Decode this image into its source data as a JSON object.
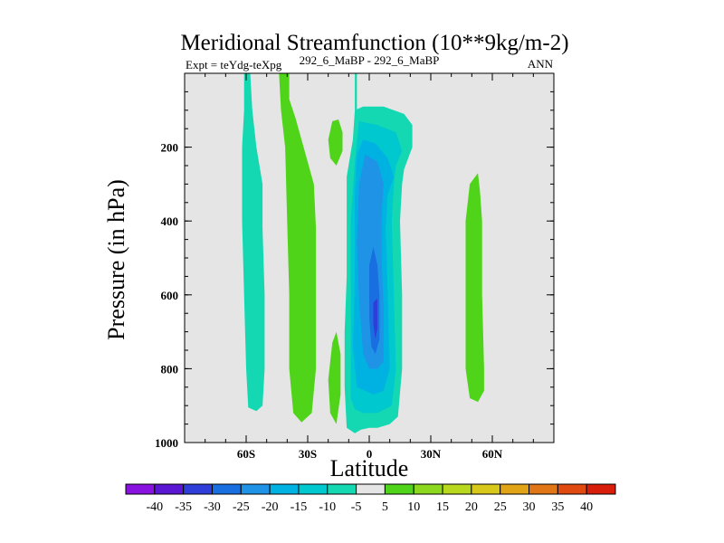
{
  "chart_data": {
    "type": "contour",
    "title": "Meridional Streamfunction (10**9kg/m-2)",
    "left_subtitle": "Expt = teYdg-teXpg",
    "center_subtitle": "292_6_MaBP - 292_6_MaBP",
    "right_subtitle": "ANN",
    "xlabel": "Latitude",
    "ylabel": "Pressure (in hPa)",
    "xlim": [
      -90,
      90
    ],
    "ylim": [
      1000,
      0
    ],
    "xticks": [
      {
        "value": -60,
        "label": "60S"
      },
      {
        "value": -30,
        "label": "30S"
      },
      {
        "value": 0,
        "label": "0"
      },
      {
        "value": 30,
        "label": "30N"
      },
      {
        "value": 60,
        "label": "60N"
      }
    ],
    "yticks": [
      {
        "value": 200,
        "label": "200"
      },
      {
        "value": 400,
        "label": "400"
      },
      {
        "value": 600,
        "label": "600"
      },
      {
        "value": 800,
        "label": "800"
      },
      {
        "value": 1000,
        "label": "1000"
      }
    ],
    "background_fill": "#e5e5e5",
    "colorbar": {
      "labels": [
        "-40",
        "-35",
        "-30",
        "-25",
        "-20",
        "-15",
        "-10",
        "-5",
        "5",
        "10",
        "15",
        "20",
        "25",
        "30",
        "35",
        "40"
      ],
      "colors": [
        "#8a12e0",
        "#5a16d2",
        "#2f3ed8",
        "#1a6fe0",
        "#1f93e6",
        "#00b2e2",
        "#00c8cf",
        "#14d8b2",
        "#e5e5e5",
        "#4fd41a",
        "#8cd81e",
        "#b8d81e",
        "#d8c81a",
        "#e0a416",
        "#e07616",
        "#e04a10",
        "#d81e0a"
      ]
    },
    "contour_regions": [
      {
        "name": "sh-polar-cell",
        "level": "-5",
        "color": "#14d8b2",
        "points": [
          [
            -61,
            0
          ],
          [
            -58,
            0
          ],
          [
            -57,
            100
          ],
          [
            -55,
            200
          ],
          [
            -52,
            300
          ],
          [
            -52,
            420
          ],
          [
            -51,
            600
          ],
          [
            -51,
            800
          ],
          [
            -52,
            900
          ],
          [
            -55,
            915
          ],
          [
            -59,
            905
          ],
          [
            -60,
            800
          ],
          [
            -61,
            600
          ],
          [
            -62,
            400
          ],
          [
            -62,
            200
          ],
          [
            -61,
            100
          ]
        ]
      },
      {
        "name": "sh-ferrel-cell",
        "level": "5",
        "color": "#4fd41a",
        "points": [
          [
            -44,
            0
          ],
          [
            -39,
            0
          ],
          [
            -39,
            70
          ],
          [
            -36,
            120
          ],
          [
            -32,
            200
          ],
          [
            -27,
            300
          ],
          [
            -26,
            420
          ],
          [
            -26,
            600
          ],
          [
            -26,
            800
          ],
          [
            -28,
            920
          ],
          [
            -33,
            945
          ],
          [
            -37,
            920
          ],
          [
            -39,
            800
          ],
          [
            -39,
            600
          ],
          [
            -40,
            400
          ],
          [
            -41,
            200
          ],
          [
            -43,
            100
          ]
        ]
      },
      {
        "name": "blob-upper",
        "level": "5",
        "color": "#4fd41a",
        "points": [
          [
            -18,
            130
          ],
          [
            -15,
            125
          ],
          [
            -13,
            160
          ],
          [
            -13,
            210
          ],
          [
            -16,
            250
          ],
          [
            -19,
            230
          ],
          [
            -20,
            180
          ]
        ]
      },
      {
        "name": "blob-lower",
        "level": "5",
        "color": "#4fd41a",
        "points": [
          [
            -18,
            730
          ],
          [
            -16,
            700
          ],
          [
            -14,
            760
          ],
          [
            -14,
            870
          ],
          [
            -16,
            950
          ],
          [
            -19,
            920
          ],
          [
            -20,
            830
          ]
        ]
      },
      {
        "name": "filament-cyan",
        "level": "-5",
        "color": "#14d8b2",
        "points": [
          [
            -7,
            0
          ],
          [
            -6,
            0
          ],
          [
            -6,
            100
          ],
          [
            -7,
            100
          ]
        ]
      },
      {
        "name": "nh-ferrel-cell",
        "level": "5",
        "color": "#4fd41a",
        "points": [
          [
            49,
            300
          ],
          [
            53,
            270
          ],
          [
            54,
            320
          ],
          [
            55,
            400
          ],
          [
            55,
            600
          ],
          [
            56,
            800
          ],
          [
            56,
            860
          ],
          [
            53,
            890
          ],
          [
            49,
            880
          ],
          [
            47,
            800
          ],
          [
            47,
            600
          ],
          [
            47,
            400
          ]
        ]
      },
      {
        "name": "hadley-m5",
        "level": "-5",
        "color": "#14d8b2",
        "points": [
          [
            -11,
            960
          ],
          [
            -12,
            850
          ],
          [
            -12,
            700
          ],
          [
            -11,
            550
          ],
          [
            -11,
            400
          ],
          [
            -11,
            280
          ],
          [
            -8,
            180
          ],
          [
            -7,
            100
          ],
          [
            -3,
            90
          ],
          [
            7,
            90
          ],
          [
            17,
            110
          ],
          [
            21,
            140
          ],
          [
            21,
            200
          ],
          [
            17,
            260
          ],
          [
            16,
            300
          ],
          [
            15,
            400
          ],
          [
            16,
            600
          ],
          [
            16,
            800
          ],
          [
            14,
            930
          ],
          [
            10,
            950
          ],
          [
            4,
            960
          ],
          [
            0,
            960
          ],
          [
            -4,
            965
          ],
          [
            -7,
            975
          ]
        ]
      },
      {
        "name": "hadley-m10",
        "level": "-10",
        "color": "#00c8cf",
        "points": [
          [
            -9,
            880
          ],
          [
            -9,
            700
          ],
          [
            -9,
            560
          ],
          [
            -9,
            400
          ],
          [
            -7,
            240
          ],
          [
            -5,
            130
          ],
          [
            4,
            140
          ],
          [
            13,
            160
          ],
          [
            16,
            210
          ],
          [
            13,
            250
          ],
          [
            12,
            300
          ],
          [
            11,
            400
          ],
          [
            12,
            600
          ],
          [
            13,
            800
          ],
          [
            11,
            900
          ],
          [
            4,
            920
          ],
          [
            -3,
            920
          ],
          [
            -7,
            910
          ]
        ]
      },
      {
        "name": "hadley-m15",
        "level": "-15",
        "color": "#00b2e2",
        "points": [
          [
            -8,
            740
          ],
          [
            -7,
            560
          ],
          [
            -7,
            450
          ],
          [
            -7,
            320
          ],
          [
            -6,
            220
          ],
          [
            -3,
            180
          ],
          [
            3,
            190
          ],
          [
            9,
            230
          ],
          [
            12,
            280
          ],
          [
            9,
            330
          ],
          [
            8,
            420
          ],
          [
            9,
            600
          ],
          [
            10,
            800
          ],
          [
            7,
            860
          ],
          [
            2,
            870
          ],
          [
            -2,
            860
          ],
          [
            -6,
            850
          ]
        ]
      },
      {
        "name": "hadley-m20",
        "level": "-20",
        "color": "#1f93e6",
        "points": [
          [
            -5,
            610
          ],
          [
            -6,
            460
          ],
          [
            -5,
            300
          ],
          [
            -2,
            220
          ],
          [
            4,
            240
          ],
          [
            7,
            300
          ],
          [
            6,
            380
          ],
          [
            6,
            500
          ],
          [
            7,
            640
          ],
          [
            7,
            780
          ],
          [
            4,
            800
          ],
          [
            0,
            800
          ],
          [
            -3,
            760
          ]
        ]
      },
      {
        "name": "hadley-m25",
        "level": "-25",
        "color": "#1a6fe0",
        "points": [
          [
            0,
            520
          ],
          [
            2,
            470
          ],
          [
            4,
            520
          ],
          [
            5,
            600
          ],
          [
            5,
            720
          ],
          [
            3,
            760
          ],
          [
            1,
            740
          ],
          [
            0,
            660
          ]
        ]
      },
      {
        "name": "hadley-m30",
        "level": "-30",
        "color": "#2f3ed8",
        "points": [
          [
            2,
            620
          ],
          [
            4,
            610
          ],
          [
            4,
            690
          ],
          [
            3,
            720
          ],
          [
            2,
            680
          ]
        ]
      }
    ]
  }
}
